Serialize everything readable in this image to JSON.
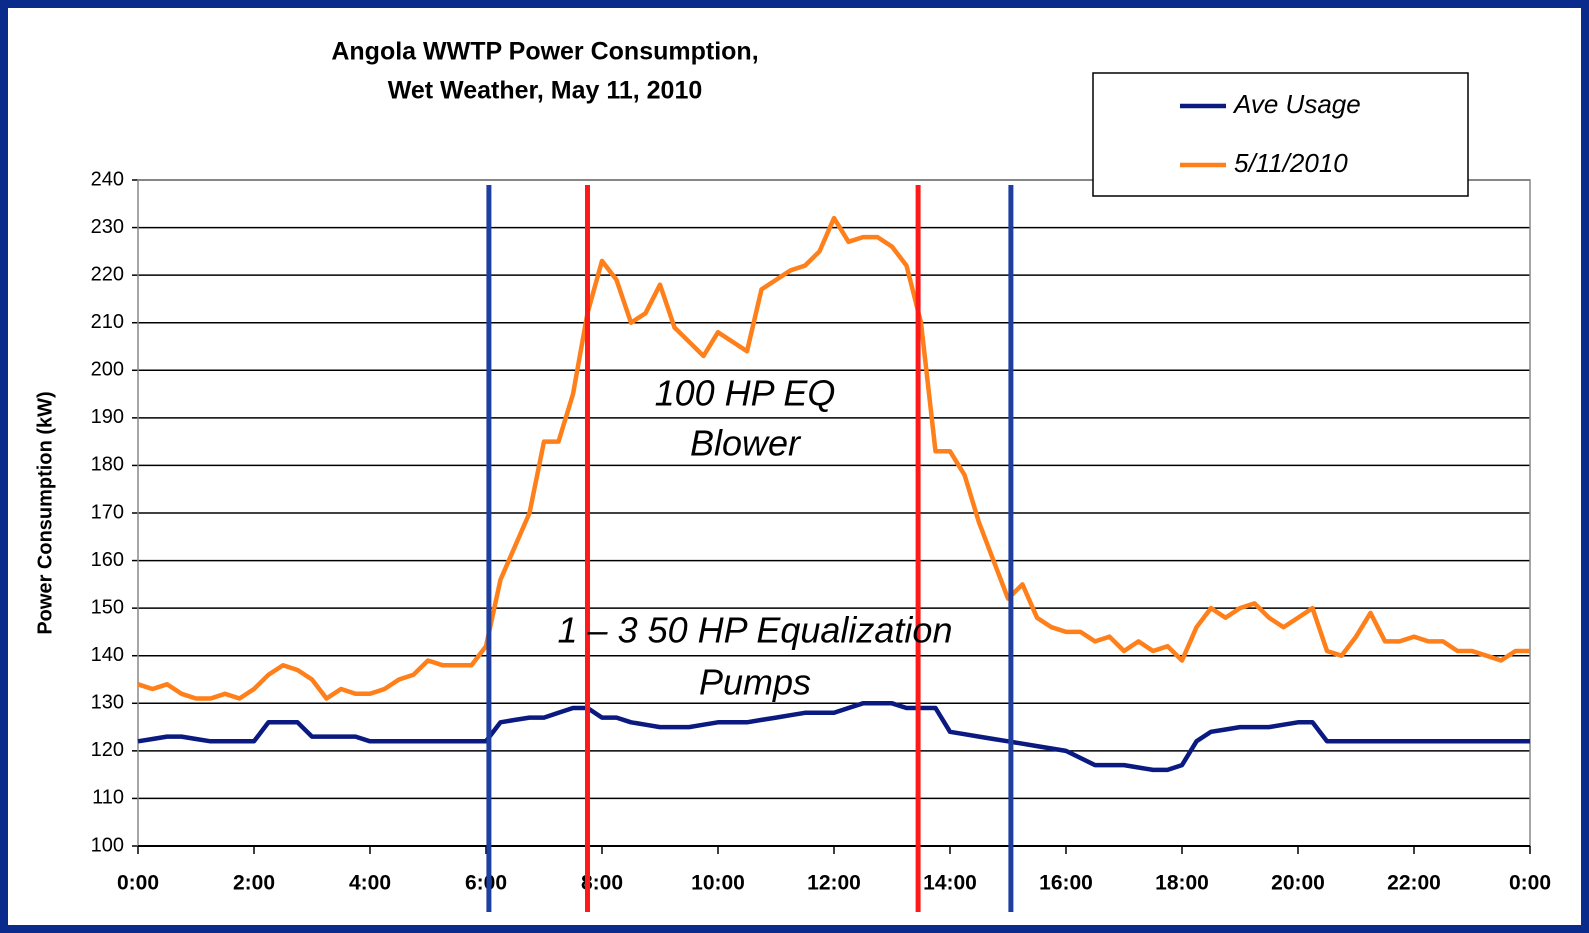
{
  "chart_data": {
    "type": "line",
    "title": "Angola WWTP Power Consumption,",
    "subtitle": "Wet Weather, May 11, 2010",
    "y_label": "Power Consumption (kW)",
    "x": [
      0,
      0.25,
      0.5,
      0.75,
      1,
      1.25,
      1.5,
      1.75,
      2,
      2.25,
      2.5,
      2.75,
      3,
      3.25,
      3.5,
      3.75,
      4,
      4.25,
      4.5,
      4.75,
      5,
      5.25,
      5.5,
      5.75,
      6,
      6.25,
      6.5,
      6.75,
      7,
      7.25,
      7.5,
      7.75,
      8,
      8.25,
      8.5,
      8.75,
      9,
      9.25,
      9.5,
      9.75,
      10,
      10.25,
      10.5,
      10.75,
      11,
      11.25,
      11.5,
      11.75,
      12,
      12.25,
      12.5,
      12.75,
      13,
      13.25,
      13.5,
      13.75,
      14,
      14.25,
      14.5,
      14.75,
      15,
      15.25,
      15.5,
      15.75,
      16,
      16.25,
      16.5,
      16.75,
      17,
      17.25,
      17.5,
      17.75,
      18,
      18.25,
      18.5,
      18.75,
      19,
      19.25,
      19.5,
      19.75,
      20,
      20.25,
      20.5,
      20.75,
      21,
      21.25,
      21.5,
      21.75,
      22,
      22.25,
      22.5,
      22.75,
      23,
      23.25,
      23.5,
      23.75,
      24
    ],
    "series": [
      {
        "name": "Ave Usage",
        "color": "#0a1a80",
        "values": [
          122,
          122.5,
          123,
          123,
          122.5,
          122,
          122,
          122,
          122,
          126,
          126,
          126,
          123,
          123,
          123,
          123,
          122,
          122,
          122,
          122,
          122,
          122,
          122,
          122,
          122,
          126,
          126.5,
          127,
          127,
          128,
          129,
          129,
          127,
          127,
          126,
          125.5,
          125,
          125,
          125,
          125.5,
          126,
          126,
          126,
          126.5,
          127,
          127.5,
          128,
          128,
          128,
          129,
          130,
          130,
          130,
          129,
          129,
          129,
          124,
          123.5,
          123,
          122.5,
          122,
          121.5,
          121,
          120.5,
          120,
          118.5,
          117,
          117,
          117,
          116.5,
          116,
          116,
          117,
          122,
          124,
          124.5,
          125,
          125,
          125,
          125.5,
          126,
          126,
          122,
          122,
          122,
          122,
          122,
          122,
          122,
          122,
          122,
          122,
          122,
          122,
          122,
          122,
          122
        ]
      },
      {
        "name": "5/11/2010",
        "color": "#ff7f1a",
        "values": [
          134,
          133,
          134,
          132,
          131,
          131,
          132,
          131,
          133,
          136,
          138,
          137,
          135,
          131,
          133,
          132,
          132,
          133,
          135,
          136,
          139,
          138,
          138,
          138,
          142,
          156,
          163,
          170,
          185,
          185,
          195,
          212,
          223,
          219,
          210,
          212,
          218,
          209,
          206,
          203,
          208,
          206,
          204,
          217,
          219,
          221,
          222,
          225,
          232,
          227,
          228,
          228,
          226,
          222,
          210,
          183,
          183,
          178,
          168,
          160,
          152,
          155,
          148,
          146,
          145,
          145,
          143,
          144,
          141,
          143,
          141,
          142,
          139,
          146,
          150,
          148,
          150,
          151,
          148,
          146,
          148,
          150,
          141,
          140,
          144,
          149,
          143,
          143,
          144,
          143,
          143,
          141,
          141,
          140,
          139,
          141,
          141
        ]
      }
    ],
    "xlim": [
      0,
      24
    ],
    "xticks": [
      {
        "value": 0,
        "label": "0:00"
      },
      {
        "value": 2,
        "label": "2:00"
      },
      {
        "value": 4,
        "label": "4:00"
      },
      {
        "value": 6,
        "label": "6:00"
      },
      {
        "value": 8,
        "label": "8:00"
      },
      {
        "value": 10,
        "label": "10:00"
      },
      {
        "value": 12,
        "label": "12:00"
      },
      {
        "value": 14,
        "label": "14:00"
      },
      {
        "value": 16,
        "label": "16:00"
      },
      {
        "value": 18,
        "label": "18:00"
      },
      {
        "value": 20,
        "label": "20:00"
      },
      {
        "value": 22,
        "label": "22:00"
      },
      {
        "value": 24,
        "label": "0:00"
      }
    ],
    "ylim": [
      100,
      240
    ],
    "yticks": [
      100,
      110,
      120,
      130,
      140,
      150,
      160,
      170,
      180,
      190,
      200,
      210,
      220,
      230,
      240
    ],
    "grid": true,
    "vlines": [
      {
        "x": 6.05,
        "color": "#1f3fa0"
      },
      {
        "x": 7.75,
        "color": "#ff1a1a"
      },
      {
        "x": 13.45,
        "color": "#ff1a1a"
      },
      {
        "x": 15.05,
        "color": "#1f3fa0"
      }
    ],
    "annotations": [
      {
        "lines": [
          "100 HP EQ",
          "Blower"
        ],
        "color": "#ff1a1a"
      },
      {
        "lines": [
          "1 – 3 50 HP Equalization",
          "Pumps"
        ],
        "color": "#1f3fa0"
      }
    ],
    "legend": "upper right"
  }
}
